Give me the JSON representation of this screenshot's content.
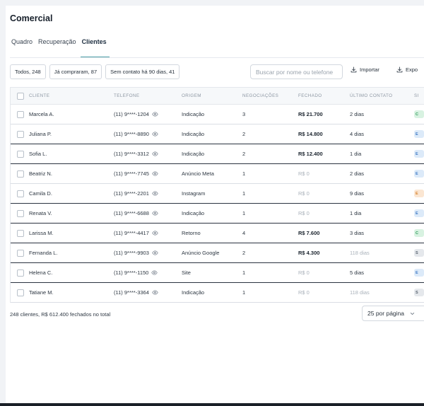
{
  "page": {
    "title": "Comercial"
  },
  "tabs": [
    {
      "label": "Quadro"
    },
    {
      "label": "Recuperação"
    },
    {
      "label": "Clientes",
      "active": true
    }
  ],
  "filters": [
    {
      "label": "Todos, 248"
    },
    {
      "label": "Já compraram, 87"
    },
    {
      "label": "Sem contato há 90 dias, 41"
    }
  ],
  "search": {
    "placeholder": "Buscar por nome ou telefone"
  },
  "actions": {
    "import_label": "Importar",
    "export_label": "Expo"
  },
  "table": {
    "headers": {
      "client": "CLIENTE",
      "phone": "TELEFONE",
      "origin": "ORIGEM",
      "negotiations": "NEGOCIAÇÕES",
      "closed": "FECHADO",
      "last_contact": "ÚLTIMO CONTATO",
      "status": "SI"
    },
    "rows": [
      {
        "name": "Marcela A.",
        "phone": "(11) 9****-1204",
        "origin": "Indicação",
        "negotiations": "3",
        "closed": "R$ 21.700",
        "last_contact": "2 dias",
        "status": "C"
      },
      {
        "name": "Juliana P.",
        "phone": "(11) 9****-8890",
        "origin": "Indicação",
        "negotiations": "2",
        "closed": "R$ 14.800",
        "last_contact": "4 dias",
        "status": "E"
      },
      {
        "name": "Sofia L.",
        "phone": "(11) 9****-3312",
        "origin": "Indicação",
        "negotiations": "2",
        "closed": "R$ 12.400",
        "last_contact": "1 dia",
        "status": "E"
      },
      {
        "name": "Beatriz N.",
        "phone": "(11) 9****-7745",
        "origin": "Anúncio Meta",
        "negotiations": "1",
        "closed": "R$ 0",
        "last_contact": "2 dias",
        "status": "E"
      },
      {
        "name": "Camila D.",
        "phone": "(11) 9****-2201",
        "origin": "Instagram",
        "negotiations": "1",
        "closed": "R$ 0",
        "last_contact": "9 dias",
        "status": "E"
      },
      {
        "name": "Renata V.",
        "phone": "(11) 9****-6688",
        "origin": "Indicação",
        "negotiations": "1",
        "closed": "R$ 0",
        "last_contact": "1 dia",
        "status": "E"
      },
      {
        "name": "Larissa M.",
        "phone": "(11) 9****-4417",
        "origin": "Retorno",
        "negotiations": "4",
        "closed": "R$ 7.600",
        "last_contact": "3 dias",
        "status": "C"
      },
      {
        "name": "Fernanda L.",
        "phone": "(11) 9****-9903",
        "origin": "Anúncio Google",
        "negotiations": "2",
        "closed": "R$ 4.300",
        "last_contact": "118 dias",
        "status": "S"
      },
      {
        "name": "Helena C.",
        "phone": "(11) 9****-1150",
        "origin": "Site",
        "negotiations": "1",
        "closed": "R$ 0",
        "last_contact": "5 dias",
        "status": "E"
      },
      {
        "name": "Tatiane M.",
        "phone": "(11) 9****-3364",
        "origin": "Indicação",
        "negotiations": "1",
        "closed": "R$ 0",
        "last_contact": "118 dias",
        "status": "S"
      }
    ]
  },
  "footer": {
    "summary": "248 clientes, R$ 612.400 fechados no total",
    "per_page": "25 por página"
  },
  "colors": {
    "accent": "#4a9ea6",
    "badge_green": "#2e9a59",
    "badge_blue": "#3f79c4",
    "badge_orange": "#d7822e",
    "badge_gray": "#5b6571"
  }
}
